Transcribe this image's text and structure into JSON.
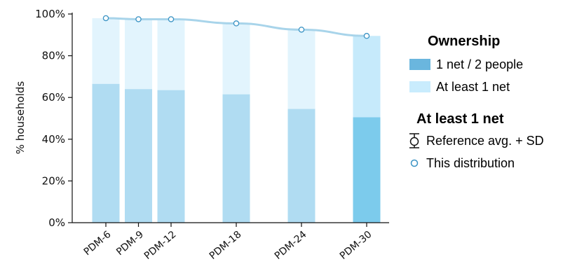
{
  "chart_data": {
    "type": "bar",
    "categories": [
      "PDM-6",
      "PDM-9",
      "PDM-12",
      "PDM-18",
      "PDM-24",
      "PDM-30"
    ],
    "x": [
      6,
      9,
      12,
      18,
      24,
      30
    ],
    "series": [
      {
        "name": "1 net / 2 people",
        "values": [
          66.5,
          64,
          63.5,
          61.5,
          54.5,
          50.5
        ]
      },
      {
        "name": "At least 1 net",
        "values": [
          98,
          97.5,
          97.5,
          95.5,
          92.5,
          89.5
        ]
      }
    ],
    "reference_line": [
      98,
      97.5,
      97.5,
      95.5,
      92.5,
      89.5
    ],
    "ylabel": "% households",
    "xlabel": "",
    "ylim": [
      0,
      100
    ],
    "yticks": [
      "0%",
      "20%",
      "40%",
      "60%",
      "80%",
      "100%"
    ],
    "grid": false,
    "legend_placement": "right"
  },
  "legend": {
    "ownership_title": "Ownership",
    "ownership_items": [
      "1 net / 2 people",
      "At least 1 net"
    ],
    "net_title": "At least 1 net",
    "ref_label": "Reference avg. + SD",
    "dist_label": "This distribution"
  },
  "colors": {
    "light": "#e2f4fd",
    "mid": "#b0dcf2",
    "highlight_dark": "#7ccbec",
    "highlight_light": "#c6eafb",
    "swatch_dark": "#6ab6de",
    "swatch_light": "#c9ecfd",
    "line": "#a8d4ea",
    "marker": "#3a93c4"
  }
}
